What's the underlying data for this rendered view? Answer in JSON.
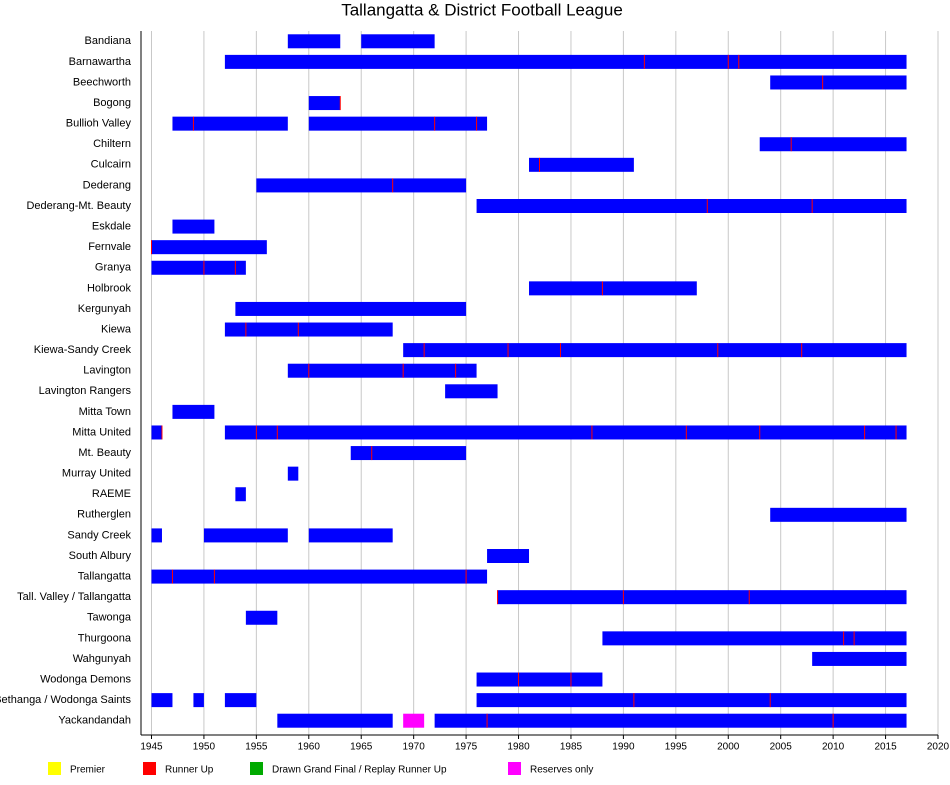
{
  "chart_data": {
    "type": "timeline",
    "title": "Tallangatta & District Football League",
    "xlim": [
      1944,
      2020
    ],
    "xticks": [
      1945,
      1950,
      1955,
      1960,
      1965,
      1970,
      1975,
      1980,
      1985,
      1990,
      1995,
      2000,
      2005,
      2010,
      2015,
      2020
    ],
    "grid": true,
    "bar_color": "#0000ff",
    "legend": [
      {
        "name": "Premier",
        "color": "#ffff00"
      },
      {
        "name": "Runner Up",
        "color": "#ff0000"
      },
      {
        "name": "Drawn Grand Final / Replay Runner Up",
        "color": "#00aa00"
      },
      {
        "name": "Reserves only",
        "color": "#ff00ff"
      }
    ],
    "rows": [
      {
        "label": "Bandiana",
        "spans": [
          [
            1958,
            1963
          ],
          [
            1965,
            1972
          ]
        ]
      },
      {
        "label": "Barnawartha",
        "spans": [
          [
            1952,
            2017
          ]
        ],
        "runner_up": [
          1992,
          2000,
          2001
        ]
      },
      {
        "label": "Beechworth",
        "spans": [
          [
            2004,
            2017
          ]
        ],
        "runner_up": [
          2009
        ]
      },
      {
        "label": "Bogong",
        "spans": [
          [
            1960,
            1963
          ]
        ],
        "runner_up": [
          1963
        ]
      },
      {
        "label": "Bullioh Valley",
        "spans": [
          [
            1947,
            1958
          ],
          [
            1960,
            1977
          ]
        ],
        "runner_up": [
          1949,
          1972,
          1976
        ]
      },
      {
        "label": "Chiltern",
        "spans": [
          [
            2003,
            2017
          ]
        ],
        "runner_up": [
          2006
        ]
      },
      {
        "label": "Culcairn",
        "spans": [
          [
            1981,
            1991
          ]
        ],
        "runner_up": [
          1982
        ]
      },
      {
        "label": "Dederang",
        "spans": [
          [
            1955,
            1975
          ]
        ],
        "runner_up": [
          1968
        ]
      },
      {
        "label": "Dederang-Mt. Beauty",
        "spans": [
          [
            1976,
            2017
          ]
        ],
        "runner_up": [
          1998,
          2008
        ]
      },
      {
        "label": "Eskdale",
        "spans": [
          [
            1947,
            1951
          ]
        ]
      },
      {
        "label": "Fernvale",
        "spans": [
          [
            1945,
            1956
          ]
        ],
        "runner_up": [
          1945
        ]
      },
      {
        "label": "Granya",
        "spans": [
          [
            1945,
            1954
          ]
        ],
        "runner_up": [
          1950,
          1953
        ]
      },
      {
        "label": "Holbrook",
        "spans": [
          [
            1981,
            1997
          ]
        ],
        "runner_up": [
          1988
        ]
      },
      {
        "label": "Kergunyah",
        "spans": [
          [
            1953,
            1975
          ]
        ]
      },
      {
        "label": "Kiewa",
        "spans": [
          [
            1952,
            1968
          ]
        ],
        "runner_up": [
          1954,
          1959
        ]
      },
      {
        "label": "Kiewa-Sandy Creek",
        "spans": [
          [
            1969,
            2017
          ]
        ],
        "runner_up": [
          1971,
          1979,
          1984,
          1999,
          2007
        ]
      },
      {
        "label": "Lavington",
        "spans": [
          [
            1958,
            1976
          ]
        ],
        "runner_up": [
          1960,
          1969,
          1974
        ]
      },
      {
        "label": "Lavington Rangers",
        "spans": [
          [
            1973,
            1978
          ]
        ]
      },
      {
        "label": "Mitta Town",
        "spans": [
          [
            1947,
            1951
          ]
        ]
      },
      {
        "label": "Mitta United",
        "spans": [
          [
            1945,
            1946
          ],
          [
            1952,
            2017
          ]
        ],
        "runner_up": [
          1946,
          1955,
          1957,
          1987,
          1996,
          2003,
          2013,
          2016
        ]
      },
      {
        "label": "Mt. Beauty",
        "spans": [
          [
            1964,
            1975
          ]
        ],
        "runner_up": [
          1966
        ]
      },
      {
        "label": "Murray United",
        "spans": [
          [
            1958,
            1959
          ]
        ]
      },
      {
        "label": "RAEME",
        "spans": [
          [
            1953,
            1954
          ]
        ]
      },
      {
        "label": "Rutherglen",
        "spans": [
          [
            2004,
            2017
          ]
        ]
      },
      {
        "label": "Sandy Creek",
        "spans": [
          [
            1945,
            1946
          ],
          [
            1950,
            1958
          ],
          [
            1960,
            1968
          ]
        ]
      },
      {
        "label": "South Albury",
        "spans": [
          [
            1977,
            1981
          ]
        ]
      },
      {
        "label": "Tallangatta",
        "spans": [
          [
            1945,
            1977
          ]
        ],
        "runner_up": [
          1947,
          1951,
          1975
        ]
      },
      {
        "label": "Tall. Valley / Tallangatta",
        "spans": [
          [
            1978,
            2017
          ]
        ],
        "runner_up": [
          1978,
          1990,
          2002
        ]
      },
      {
        "label": "Tawonga",
        "spans": [
          [
            1954,
            1957
          ]
        ]
      },
      {
        "label": "Thurgoona",
        "spans": [
          [
            1988,
            2017
          ]
        ],
        "runner_up": [
          2011,
          2012
        ]
      },
      {
        "label": "Wahgunyah",
        "spans": [
          [
            2008,
            2017
          ]
        ]
      },
      {
        "label": "Wodonga Demons",
        "spans": [
          [
            1976,
            1988
          ]
        ],
        "runner_up": [
          1980,
          1985
        ]
      },
      {
        "label": "Bethanga / Wodonga Saints",
        "spans": [
          [
            1945,
            1947
          ],
          [
            1949,
            1950
          ],
          [
            1952,
            1955
          ],
          [
            1976,
            2017
          ]
        ],
        "runner_up": [
          1991,
          2004
        ]
      },
      {
        "label": "Yackandandah",
        "spans": [
          [
            1957,
            1968
          ],
          [
            1972,
            2017
          ]
        ],
        "reserves_only": [
          [
            1969,
            1971
          ]
        ],
        "runner_up": [
          1977,
          2010
        ]
      }
    ]
  }
}
